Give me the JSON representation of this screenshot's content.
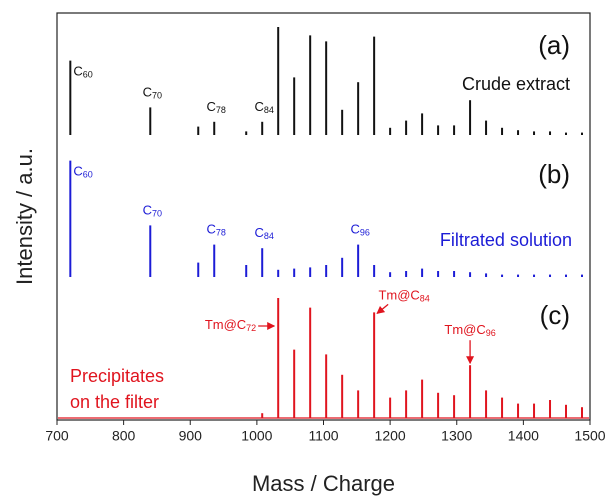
{
  "chart_data": [
    {
      "type": "stem",
      "label": "(a)",
      "title": "Crude extract",
      "color": "#111111",
      "ylim": [
        0,
        100
      ],
      "xlim": [
        700,
        1500
      ],
      "x": [
        720,
        840,
        912,
        936,
        984,
        1008,
        1032,
        1056,
        1080,
        1104,
        1128,
        1152,
        1176,
        1200,
        1224,
        1248,
        1272,
        1296,
        1320,
        1344,
        1368,
        1392,
        1416,
        1440,
        1464,
        1488
      ],
      "values": [
        62,
        23,
        7,
        11,
        3,
        11,
        90,
        48,
        83,
        78,
        21,
        44,
        82,
        6,
        12,
        18,
        8,
        8,
        29,
        12,
        6,
        4,
        3,
        3,
        2,
        2
      ],
      "annotations": [
        {
          "text": "C",
          "sub": "60",
          "x": 720
        },
        {
          "text": "C",
          "sub": "70",
          "x": 840
        },
        {
          "text": "C",
          "sub": "78",
          "x": 936
        },
        {
          "text": "C",
          "sub": "84",
          "x": 1008
        }
      ]
    },
    {
      "type": "stem",
      "label": "(b)",
      "title": "Filtrated solution",
      "color": "#1c1cd6",
      "ylim": [
        0,
        100
      ],
      "xlim": [
        700,
        1500
      ],
      "ylabel": "Intensity / a.u.",
      "x": [
        720,
        840,
        912,
        936,
        984,
        1008,
        1032,
        1056,
        1080,
        1104,
        1128,
        1152,
        1176,
        1200,
        1224,
        1248,
        1272,
        1296,
        1320,
        1344,
        1368,
        1392,
        1416,
        1440,
        1464,
        1488
      ],
      "values": [
        97,
        43,
        12,
        27,
        10,
        24,
        6,
        7,
        8,
        10,
        16,
        27,
        10,
        4,
        5,
        7,
        5,
        5,
        4,
        3,
        2,
        2,
        2,
        2,
        2,
        2
      ],
      "annotations": [
        {
          "text": "C",
          "sub": "60",
          "x": 720
        },
        {
          "text": "C",
          "sub": "70",
          "x": 840
        },
        {
          "text": "C",
          "sub": "78",
          "x": 936
        },
        {
          "text": "C",
          "sub": "84",
          "x": 1008
        },
        {
          "text": "C",
          "sub": "96",
          "x": 1152
        }
      ]
    },
    {
      "type": "stem",
      "label": "(c)",
      "title": "Precipitates on the filter",
      "color": "#e0141e",
      "ylim": [
        0,
        100
      ],
      "xlim": [
        700,
        1500
      ],
      "xlabel": "Mass / Charge",
      "xticks": [
        700,
        800,
        900,
        1000,
        1100,
        1200,
        1300,
        1400,
        1500
      ],
      "x": [
        1008,
        1032,
        1056,
        1080,
        1104,
        1128,
        1152,
        1176,
        1200,
        1224,
        1248,
        1272,
        1296,
        1320,
        1344,
        1368,
        1392,
        1416,
        1440,
        1464,
        1488
      ],
      "values": [
        4,
        100,
        57,
        92,
        53,
        36,
        23,
        88,
        17,
        23,
        32,
        21,
        19,
        44,
        23,
        17,
        12,
        12,
        15,
        11,
        9
      ],
      "annotations": [
        {
          "text": "Tm@C",
          "sub": "72",
          "x": 1032
        },
        {
          "text": "Tm@C",
          "sub": "84",
          "x": 1176
        },
        {
          "text": "Tm@C",
          "sub": "96",
          "x": 1320
        }
      ]
    }
  ]
}
